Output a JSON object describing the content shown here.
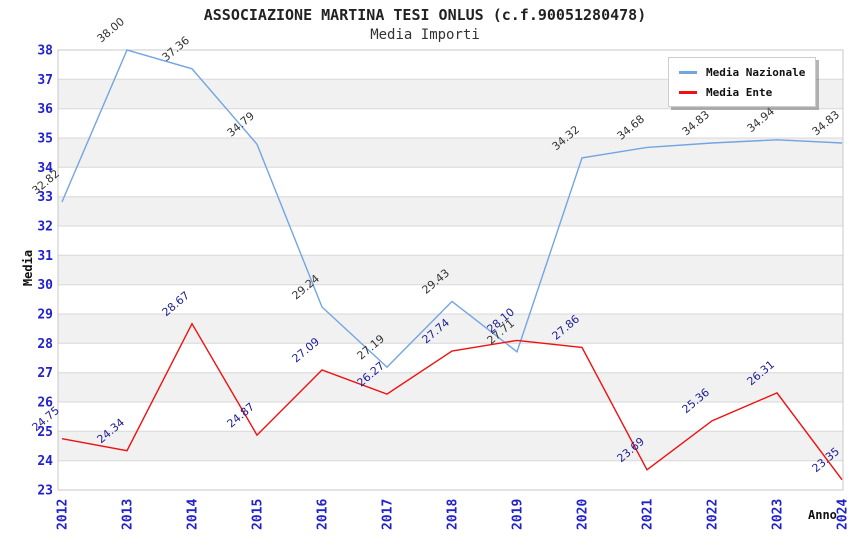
{
  "header": {
    "title": "ASSOCIAZIONE MARTINA TESI ONLUS (c.f.90051280478)",
    "subtitle": "Media Importi"
  },
  "legend": {
    "position": "top-right",
    "items": [
      {
        "label": "Media Nazionale",
        "color": "#72a5e2"
      },
      {
        "label": "Media Ente",
        "color": "#ee1111"
      }
    ]
  },
  "axes": {
    "y_title": "Media",
    "x_title": "Anno",
    "y_ticks": [
      23,
      24,
      25,
      26,
      27,
      28,
      29,
      30,
      31,
      32,
      33,
      34,
      35,
      36,
      37,
      38
    ],
    "tick_color": "#2222cc"
  },
  "chart_data": {
    "type": "line",
    "title": "ASSOCIAZIONE MARTINA TESI ONLUS (c.f.90051280478)",
    "subtitle": "Media Importi",
    "xlabel": "Anno",
    "ylabel": "Media",
    "ylim": [
      23,
      38
    ],
    "grid": "horizontal-bands-alternating",
    "legend_position": "top-right",
    "band_colors": [
      "#ffffff",
      "#f1f1f1"
    ],
    "gridline_color": "#d8d8d8",
    "border_color": "#c8c8c8",
    "categories": [
      "2012",
      "2013",
      "2014",
      "2015",
      "2016",
      "2017",
      "2018",
      "2019",
      "2020",
      "2021",
      "2022",
      "2023",
      "2024"
    ],
    "series": [
      {
        "name": "Media Nazionale",
        "color": "#72a5e2",
        "label_color": "#333333",
        "values": [
          32.82,
          38.0,
          37.36,
          34.79,
          29.24,
          27.19,
          29.43,
          27.71,
          34.32,
          34.68,
          34.83,
          34.94,
          34.83
        ]
      },
      {
        "name": "Media Ente",
        "color": "#ee1111",
        "label_color": "#1c1c96",
        "values": [
          24.75,
          24.34,
          28.67,
          24.87,
          27.09,
          26.27,
          27.74,
          28.1,
          27.86,
          23.69,
          25.36,
          26.31,
          23.35
        ]
      }
    ]
  }
}
